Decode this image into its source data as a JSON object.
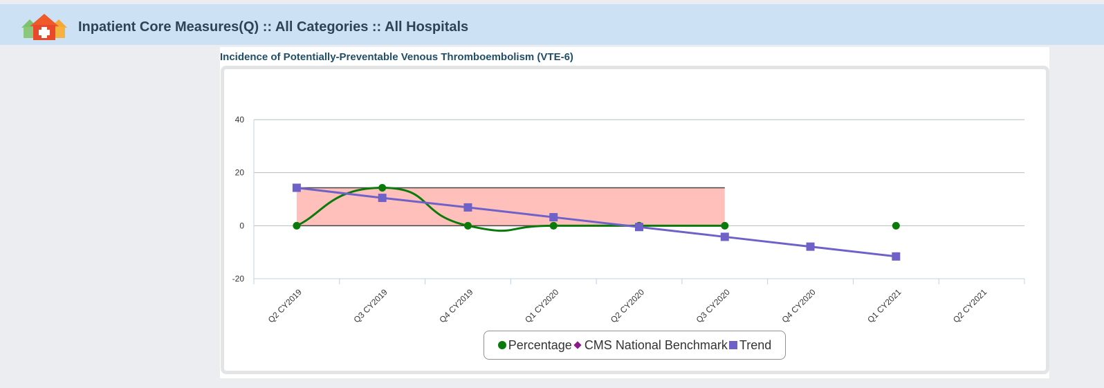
{
  "header": {
    "title": "Inpatient Core Measures(Q) :: All Categories :: All Hospitals",
    "logo_icon": "hospital-buildings-icon",
    "background": "#cce1f4"
  },
  "panel": {
    "title": "Incidence of Potentially-Preventable Venous Thromboembolism (VTE-6)"
  },
  "chart_data": {
    "type": "line",
    "categories": [
      "Q2 CY2019",
      "Q3 CY2019",
      "Q4 CY2019",
      "Q1 CY2020",
      "Q2 CY2020",
      "Q3 CY2020",
      "Q4 CY2020",
      "Q1 CY2021",
      "Q2 CY2021"
    ],
    "ylim": [
      -20,
      40
    ],
    "yticks": [
      -20,
      0,
      20,
      40
    ],
    "grid": true,
    "legend_position": "bottom-center",
    "band": {
      "from_category": "Q2 CY2019",
      "to_category": "Q3 CY2020",
      "low": 0,
      "high": 14.3,
      "color": "#ffc0bb"
    },
    "series": [
      {
        "name": "Percentage",
        "color": "#0a7a0a",
        "marker": "circle",
        "smooth": true,
        "values": [
          0,
          14.3,
          0,
          0,
          0,
          0,
          null,
          0,
          null
        ]
      },
      {
        "name": "CMS National Benchmark",
        "color": "#8b1a8b",
        "marker": "diamond",
        "values": [
          null,
          null,
          null,
          null,
          null,
          null,
          null,
          null,
          null
        ]
      },
      {
        "name": "Trend",
        "color": "#6e62c8",
        "marker": "square",
        "values": [
          14.3,
          10.5,
          6.9,
          3.2,
          -0.5,
          -4.2,
          -7.9,
          -11.6,
          null
        ]
      }
    ]
  }
}
